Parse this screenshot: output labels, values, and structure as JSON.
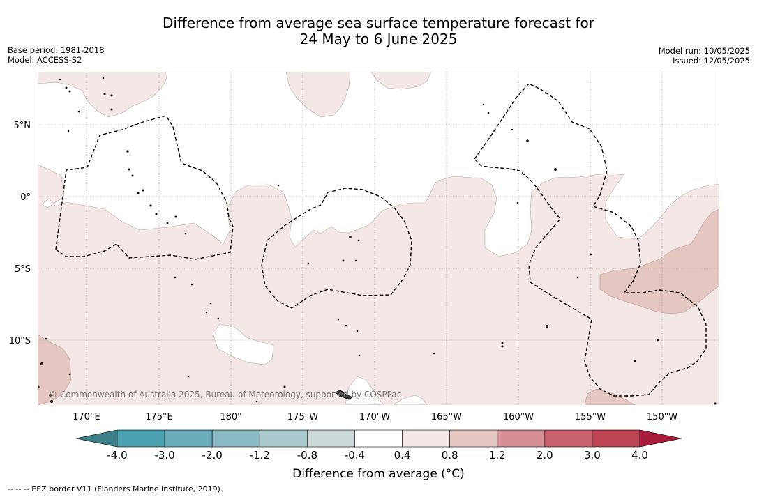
{
  "title": {
    "line1": "Difference from average sea surface temperature forecast for",
    "line2": "24 May to 6 June 2025"
  },
  "meta_left": {
    "base_period": "Base period: 1981-2018",
    "model": "Model: ACCESS-S2"
  },
  "meta_right": {
    "model_run": "Model run: 10/05/2025",
    "issued": "Issued: 12/05/2025"
  },
  "map": {
    "lat_labels": [
      "5°N",
      "0°",
      "5°S",
      "10°S"
    ],
    "lon_labels": [
      "170°E",
      "175°E",
      "180°",
      "175°W",
      "170°W",
      "165°W",
      "160°W",
      "155°W",
      "150°W"
    ],
    "copyright": "© Commonwealth of Australia 2025, Bureau of Meteorology, supported by COSPPac",
    "colors": {
      "anomaly_0_4_to_0_8": "#f4e8e6",
      "anomaly_0_8_to_1_2": "#e5c7c2",
      "eez_border": "#000000",
      "land": "#333333"
    }
  },
  "colorbar": {
    "tick_labels": [
      "-4.0",
      "-3.0",
      "-2.0",
      "-1.2",
      "-0.8",
      "-0.4",
      "0.4",
      "0.8",
      "1.2",
      "2.0",
      "3.0",
      "4.0"
    ],
    "colors": [
      "#3d7f86",
      "#4ba0b0",
      "#6aacbb",
      "#8bb9c3",
      "#a9c9cc",
      "#ccd7d7",
      "#ffffff",
      "#f4e8e6",
      "#e5c7c2",
      "#d58f95",
      "#c9636c",
      "#bc4452",
      "#a81b3a"
    ],
    "title": "Difference from average (°C)"
  },
  "footnote": "--  --  -- EEZ border V11 (Flanders Marine Institute, 2019)."
}
